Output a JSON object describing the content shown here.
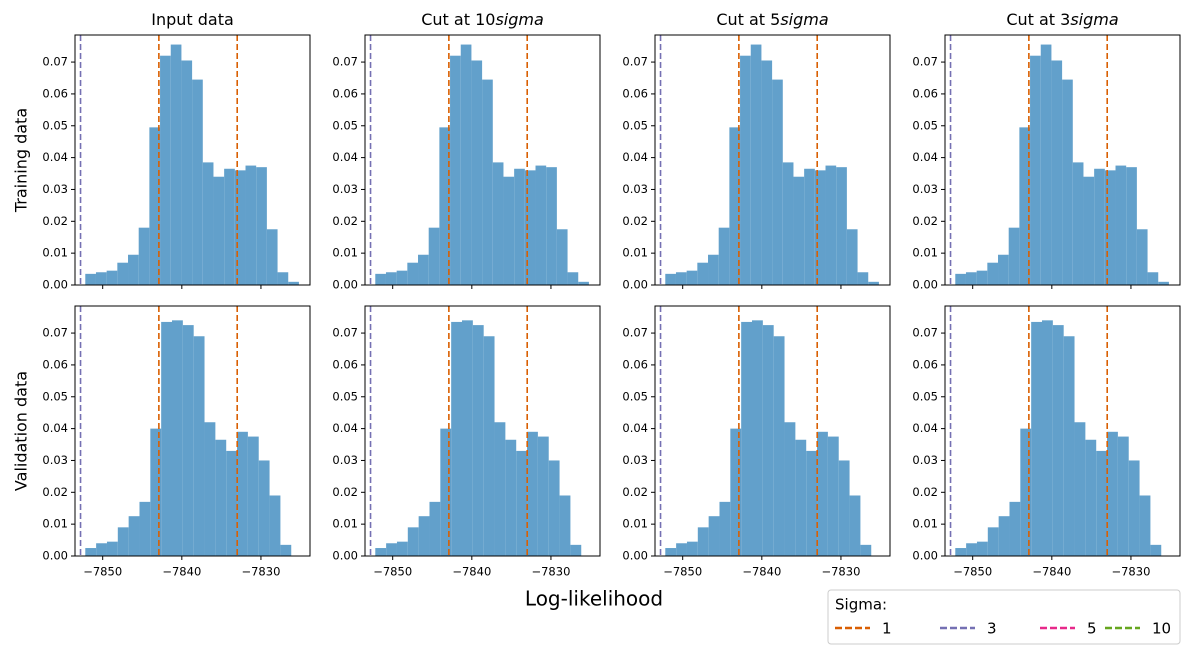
{
  "figure": {
    "xlabel": "Log-likelihood",
    "legend": {
      "title": "Sigma:",
      "entries": [
        {
          "name": "1",
          "color": "#d95f02"
        },
        {
          "name": "3",
          "color": "#7570b3"
        },
        {
          "name": "5",
          "color": "#e7298a"
        },
        {
          "name": "10",
          "color": "#66a61e"
        }
      ]
    }
  },
  "chart_data": [
    {
      "type": "histogram",
      "title": [
        "Input data"
      ],
      "ylabel": "Training data",
      "color": "#62a0cb",
      "bins": [
        -7852.2,
        -7850.85,
        -7849.5,
        -7848.15,
        -7846.8,
        -7845.45,
        -7844.1,
        -7842.75,
        -7841.4,
        -7840.05,
        -7838.7,
        -7837.35,
        -7836,
        -7834.65,
        -7833.3,
        -7831.95,
        -7830.6,
        -7829.25,
        -7827.9,
        -7826.55,
        -7825.2
      ],
      "values": [
        0.0035,
        0.004,
        0.0045,
        0.007,
        0.0095,
        0.018,
        0.0495,
        0.072,
        0.0755,
        0.0705,
        0.0645,
        0.0385,
        0.034,
        0.0365,
        0.036,
        0.0375,
        0.037,
        0.0175,
        0.004,
        0.001
      ],
      "vlines": [
        {
          "value": -7852.8,
          "color": "#7570b3"
        },
        {
          "value": -7842.9,
          "color": "#d95f02"
        },
        {
          "value": -7833.0,
          "color": "#d95f02"
        }
      ],
      "xlim": [
        -7853.5,
        -7823.8
      ],
      "ylim": [
        0,
        0.0785
      ],
      "xticks": [
        -7850,
        -7840,
        -7830
      ],
      "yticks": [
        {
          "value": 0,
          "label": "0.00"
        },
        {
          "value": 0.01,
          "label": "0.01"
        },
        {
          "value": 0.02,
          "label": "0.02"
        },
        {
          "value": 0.03,
          "label": "0.03"
        },
        {
          "value": 0.04,
          "label": "0.04"
        },
        {
          "value": 0.05,
          "label": "0.05"
        },
        {
          "value": 0.06,
          "label": "0.06"
        },
        {
          "value": 0.07,
          "label": "0.07"
        }
      ]
    },
    {
      "type": "histogram",
      "title": [
        "Cut at 10",
        "sigma"
      ],
      "color": "#62a0cb",
      "bins": [
        -7852.2,
        -7850.85,
        -7849.5,
        -7848.15,
        -7846.8,
        -7845.45,
        -7844.1,
        -7842.75,
        -7841.4,
        -7840.05,
        -7838.7,
        -7837.35,
        -7836,
        -7834.65,
        -7833.3,
        -7831.95,
        -7830.6,
        -7829.25,
        -7827.9,
        -7826.55,
        -7825.2
      ],
      "values": [
        0.0035,
        0.004,
        0.0045,
        0.007,
        0.0095,
        0.018,
        0.0495,
        0.072,
        0.0755,
        0.0705,
        0.0645,
        0.0385,
        0.034,
        0.0365,
        0.036,
        0.0375,
        0.037,
        0.0175,
        0.004,
        0.001
      ],
      "vlines": [
        {
          "value": -7852.8,
          "color": "#7570b3"
        },
        {
          "value": -7842.9,
          "color": "#d95f02"
        },
        {
          "value": -7833.0,
          "color": "#d95f02"
        }
      ],
      "xlim": [
        -7853.5,
        -7823.8
      ],
      "ylim": [
        0,
        0.0785
      ],
      "xticks": [
        -7850,
        -7840,
        -7830
      ],
      "yticks": [
        {
          "value": 0,
          "label": "0.00"
        },
        {
          "value": 0.01,
          "label": "0.01"
        },
        {
          "value": 0.02,
          "label": "0.02"
        },
        {
          "value": 0.03,
          "label": "0.03"
        },
        {
          "value": 0.04,
          "label": "0.04"
        },
        {
          "value": 0.05,
          "label": "0.05"
        },
        {
          "value": 0.06,
          "label": "0.06"
        },
        {
          "value": 0.07,
          "label": "0.07"
        }
      ]
    },
    {
      "type": "histogram",
      "title": [
        "Cut at 5",
        "sigma"
      ],
      "color": "#62a0cb",
      "bins": [
        -7852.2,
        -7850.85,
        -7849.5,
        -7848.15,
        -7846.8,
        -7845.45,
        -7844.1,
        -7842.75,
        -7841.4,
        -7840.05,
        -7838.7,
        -7837.35,
        -7836,
        -7834.65,
        -7833.3,
        -7831.95,
        -7830.6,
        -7829.25,
        -7827.9,
        -7826.55,
        -7825.2
      ],
      "values": [
        0.0035,
        0.004,
        0.0045,
        0.007,
        0.0095,
        0.018,
        0.0495,
        0.072,
        0.0755,
        0.0705,
        0.0645,
        0.0385,
        0.034,
        0.0365,
        0.036,
        0.0375,
        0.037,
        0.0175,
        0.004,
        0.001
      ],
      "vlines": [
        {
          "value": -7852.8,
          "color": "#7570b3"
        },
        {
          "value": -7842.9,
          "color": "#d95f02"
        },
        {
          "value": -7833.0,
          "color": "#d95f02"
        }
      ],
      "xlim": [
        -7853.5,
        -7823.8
      ],
      "ylim": [
        0,
        0.0785
      ],
      "xticks": [
        -7850,
        -7840,
        -7830
      ],
      "yticks": [
        {
          "value": 0,
          "label": "0.00"
        },
        {
          "value": 0.01,
          "label": "0.01"
        },
        {
          "value": 0.02,
          "label": "0.02"
        },
        {
          "value": 0.03,
          "label": "0.03"
        },
        {
          "value": 0.04,
          "label": "0.04"
        },
        {
          "value": 0.05,
          "label": "0.05"
        },
        {
          "value": 0.06,
          "label": "0.06"
        },
        {
          "value": 0.07,
          "label": "0.07"
        }
      ]
    },
    {
      "type": "histogram",
      "title": [
        "Cut at 3",
        "sigma"
      ],
      "color": "#62a0cb",
      "bins": [
        -7852.2,
        -7850.85,
        -7849.5,
        -7848.15,
        -7846.8,
        -7845.45,
        -7844.1,
        -7842.75,
        -7841.4,
        -7840.05,
        -7838.7,
        -7837.35,
        -7836,
        -7834.65,
        -7833.3,
        -7831.95,
        -7830.6,
        -7829.25,
        -7827.9,
        -7826.55,
        -7825.2
      ],
      "values": [
        0.0035,
        0.004,
        0.0045,
        0.007,
        0.0095,
        0.018,
        0.0495,
        0.072,
        0.0755,
        0.0705,
        0.0645,
        0.0385,
        0.034,
        0.0365,
        0.036,
        0.0375,
        0.037,
        0.0175,
        0.004,
        0.001
      ],
      "vlines": [
        {
          "value": -7852.8,
          "color": "#7570b3"
        },
        {
          "value": -7842.9,
          "color": "#d95f02"
        },
        {
          "value": -7833.0,
          "color": "#d95f02"
        }
      ],
      "xlim": [
        -7853.5,
        -7823.8
      ],
      "ylim": [
        0,
        0.0785
      ],
      "xticks": [
        -7850,
        -7840,
        -7830
      ],
      "yticks": [
        {
          "value": 0,
          "label": "0.00"
        },
        {
          "value": 0.01,
          "label": "0.01"
        },
        {
          "value": 0.02,
          "label": "0.02"
        },
        {
          "value": 0.03,
          "label": "0.03"
        },
        {
          "value": 0.04,
          "label": "0.04"
        },
        {
          "value": 0.05,
          "label": "0.05"
        },
        {
          "value": 0.06,
          "label": "0.06"
        },
        {
          "value": 0.07,
          "label": "0.07"
        }
      ]
    },
    {
      "type": "histogram",
      "ylabel": "Validation data",
      "color": "#62a0cb",
      "bins": [
        -7852.2,
        -7850.83,
        -7849.46,
        -7848.09,
        -7846.72,
        -7845.35,
        -7843.98,
        -7842.61,
        -7841.24,
        -7839.87,
        -7838.5,
        -7837.13,
        -7835.76,
        -7834.39,
        -7833.02,
        -7831.65,
        -7830.28,
        -7828.91,
        -7827.54,
        -7826.17
      ],
      "values": [
        0.0025,
        0.004,
        0.0045,
        0.009,
        0.0125,
        0.017,
        0.04,
        0.0735,
        0.074,
        0.0725,
        0.069,
        0.042,
        0.0365,
        0.033,
        0.039,
        0.0375,
        0.03,
        0.019,
        0.0035
      ],
      "vlines": [
        {
          "value": -7852.8,
          "color": "#7570b3"
        },
        {
          "value": -7842.9,
          "color": "#d95f02"
        },
        {
          "value": -7833.0,
          "color": "#d95f02"
        }
      ],
      "xlim": [
        -7853.5,
        -7823.8
      ],
      "ylim": [
        0,
        0.0785
      ],
      "xticks": [
        {
          "value": -7850,
          "label": "−7850"
        },
        {
          "value": -7840,
          "label": "−7840"
        },
        {
          "value": -7830,
          "label": "−7830"
        }
      ],
      "yticks": [
        {
          "value": 0,
          "label": "0.00"
        },
        {
          "value": 0.01,
          "label": "0.01"
        },
        {
          "value": 0.02,
          "label": "0.02"
        },
        {
          "value": 0.03,
          "label": "0.03"
        },
        {
          "value": 0.04,
          "label": "0.04"
        },
        {
          "value": 0.05,
          "label": "0.05"
        },
        {
          "value": 0.06,
          "label": "0.06"
        },
        {
          "value": 0.07,
          "label": "0.07"
        }
      ]
    },
    {
      "type": "histogram",
      "color": "#62a0cb",
      "bins": [
        -7852.2,
        -7850.83,
        -7849.46,
        -7848.09,
        -7846.72,
        -7845.35,
        -7843.98,
        -7842.61,
        -7841.24,
        -7839.87,
        -7838.5,
        -7837.13,
        -7835.76,
        -7834.39,
        -7833.02,
        -7831.65,
        -7830.28,
        -7828.91,
        -7827.54,
        -7826.17
      ],
      "values": [
        0.0025,
        0.004,
        0.0045,
        0.009,
        0.0125,
        0.017,
        0.04,
        0.0735,
        0.074,
        0.0725,
        0.069,
        0.042,
        0.0365,
        0.033,
        0.039,
        0.0375,
        0.03,
        0.019,
        0.0035
      ],
      "vlines": [
        {
          "value": -7852.8,
          "color": "#7570b3"
        },
        {
          "value": -7842.9,
          "color": "#d95f02"
        },
        {
          "value": -7833.0,
          "color": "#d95f02"
        }
      ],
      "xlim": [
        -7853.5,
        -7823.8
      ],
      "ylim": [
        0,
        0.0785
      ],
      "xticks": [
        {
          "value": -7850,
          "label": "−7850"
        },
        {
          "value": -7840,
          "label": "−7840"
        },
        {
          "value": -7830,
          "label": "−7830"
        }
      ],
      "yticks": [
        {
          "value": 0,
          "label": "0.00"
        },
        {
          "value": 0.01,
          "label": "0.01"
        },
        {
          "value": 0.02,
          "label": "0.02"
        },
        {
          "value": 0.03,
          "label": "0.03"
        },
        {
          "value": 0.04,
          "label": "0.04"
        },
        {
          "value": 0.05,
          "label": "0.05"
        },
        {
          "value": 0.06,
          "label": "0.06"
        },
        {
          "value": 0.07,
          "label": "0.07"
        }
      ]
    },
    {
      "type": "histogram",
      "color": "#62a0cb",
      "bins": [
        -7852.2,
        -7850.83,
        -7849.46,
        -7848.09,
        -7846.72,
        -7845.35,
        -7843.98,
        -7842.61,
        -7841.24,
        -7839.87,
        -7838.5,
        -7837.13,
        -7835.76,
        -7834.39,
        -7833.02,
        -7831.65,
        -7830.28,
        -7828.91,
        -7827.54,
        -7826.17
      ],
      "values": [
        0.0025,
        0.004,
        0.0045,
        0.009,
        0.0125,
        0.017,
        0.04,
        0.0735,
        0.074,
        0.0725,
        0.069,
        0.042,
        0.0365,
        0.033,
        0.039,
        0.0375,
        0.03,
        0.019,
        0.0035
      ],
      "vlines": [
        {
          "value": -7852.8,
          "color": "#7570b3"
        },
        {
          "value": -7842.9,
          "color": "#d95f02"
        },
        {
          "value": -7833.0,
          "color": "#d95f02"
        }
      ],
      "xlim": [
        -7853.5,
        -7823.8
      ],
      "ylim": [
        0,
        0.0785
      ],
      "xticks": [
        {
          "value": -7850,
          "label": "−7850"
        },
        {
          "value": -7840,
          "label": "−7840"
        },
        {
          "value": -7830,
          "label": "−7830"
        }
      ],
      "yticks": [
        {
          "value": 0,
          "label": "0.00"
        },
        {
          "value": 0.01,
          "label": "0.01"
        },
        {
          "value": 0.02,
          "label": "0.02"
        },
        {
          "value": 0.03,
          "label": "0.03"
        },
        {
          "value": 0.04,
          "label": "0.04"
        },
        {
          "value": 0.05,
          "label": "0.05"
        },
        {
          "value": 0.06,
          "label": "0.06"
        },
        {
          "value": 0.07,
          "label": "0.07"
        }
      ]
    },
    {
      "type": "histogram",
      "color": "#62a0cb",
      "bins": [
        -7852.2,
        -7850.83,
        -7849.46,
        -7848.09,
        -7846.72,
        -7845.35,
        -7843.98,
        -7842.61,
        -7841.24,
        -7839.87,
        -7838.5,
        -7837.13,
        -7835.76,
        -7834.39,
        -7833.02,
        -7831.65,
        -7830.28,
        -7828.91,
        -7827.54,
        -7826.17
      ],
      "values": [
        0.0025,
        0.004,
        0.0045,
        0.009,
        0.0125,
        0.017,
        0.04,
        0.0735,
        0.074,
        0.0725,
        0.069,
        0.042,
        0.0365,
        0.033,
        0.039,
        0.0375,
        0.03,
        0.019,
        0.0035
      ],
      "vlines": [
        {
          "value": -7852.8,
          "color": "#7570b3"
        },
        {
          "value": -7842.9,
          "color": "#d95f02"
        },
        {
          "value": -7833.0,
          "color": "#d95f02"
        }
      ],
      "xlim": [
        -7853.5,
        -7823.8
      ],
      "ylim": [
        0,
        0.0785
      ],
      "xticks": [
        {
          "value": -7850,
          "label": "−7850"
        },
        {
          "value": -7840,
          "label": "−7840"
        },
        {
          "value": -7830,
          "label": "−7830"
        }
      ],
      "yticks": [
        {
          "value": 0,
          "label": "0.00"
        },
        {
          "value": 0.01,
          "label": "0.01"
        },
        {
          "value": 0.02,
          "label": "0.02"
        },
        {
          "value": 0.03,
          "label": "0.03"
        },
        {
          "value": 0.04,
          "label": "0.04"
        },
        {
          "value": 0.05,
          "label": "0.05"
        },
        {
          "value": 0.06,
          "label": "0.06"
        },
        {
          "value": 0.07,
          "label": "0.07"
        }
      ]
    }
  ]
}
